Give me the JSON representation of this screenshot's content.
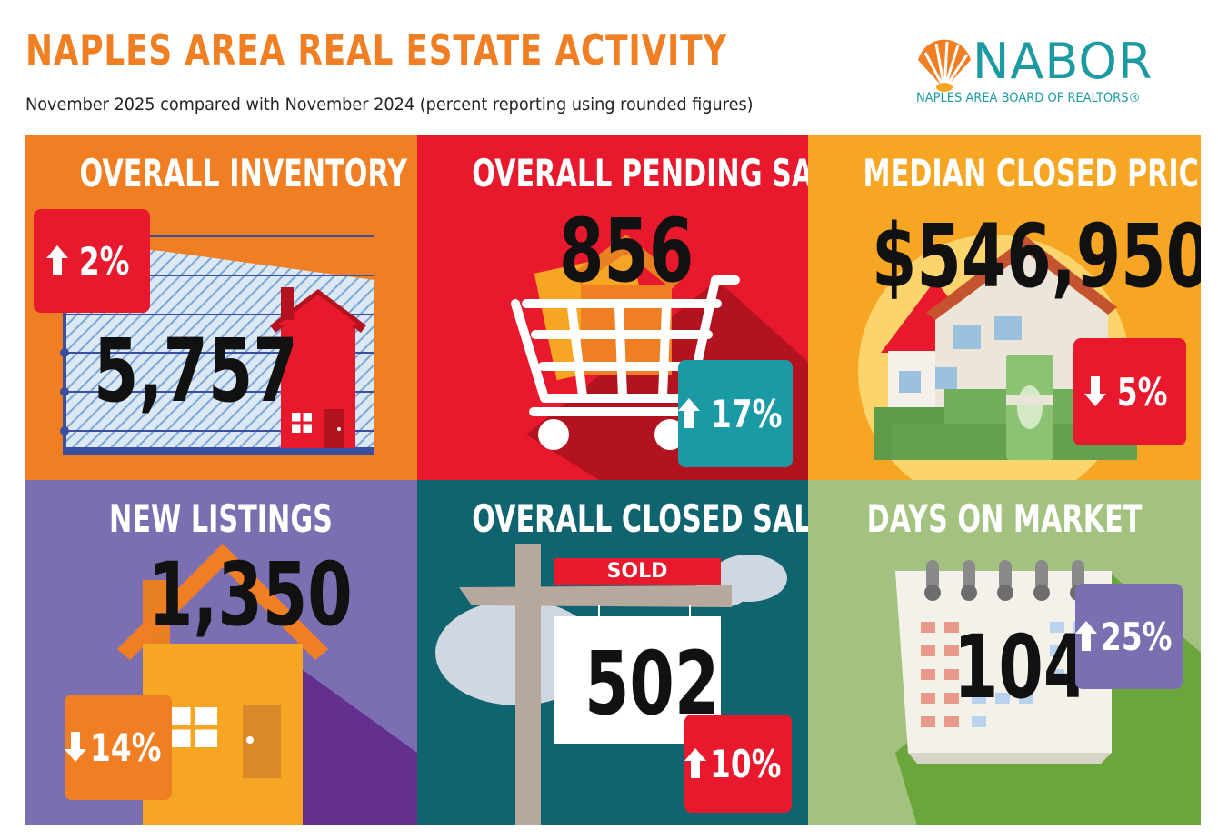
{
  "header": {
    "title": "NAPLES AREA REAL ESTATE ACTIVITY",
    "subtitle": "November 2025 compared with November 2024 (percent reporting using rounded figures)"
  },
  "logo": {
    "wordmark": "NABOR",
    "tagline": "NAPLES AREA BOARD OF REALTORS®"
  },
  "panels": {
    "inventory": {
      "title": "OVERALL INVENTORY",
      "value": "5,757",
      "change": "2%",
      "direction": "up",
      "bg": "#f07f24",
      "badge": "#e8192c"
    },
    "pending": {
      "title": "OVERALL PENDING SALES",
      "value": "856",
      "change": "17%",
      "direction": "up",
      "bg": "#e8192c",
      "badge": "#1a9aa5"
    },
    "median_price": {
      "title": "MEDIAN CLOSED PRICE",
      "value": "$546,950",
      "change": "5%",
      "direction": "down",
      "bg": "#f6a623",
      "badge": "#e8192c"
    },
    "new_listings": {
      "title": "NEW LISTINGS",
      "value": "1,350",
      "change": "14%",
      "direction": "down",
      "bg": "#7b6fb2",
      "badge": "#f07f24"
    },
    "closed_sales": {
      "title": "OVERALL CLOSED SALES",
      "value": "502",
      "change": "10%",
      "direction": "up",
      "bg": "#106470",
      "badge": "#e8192c",
      "sign": "SOLD"
    },
    "days_on_market": {
      "title": "DAYS ON MARKET",
      "value": "104",
      "change": "25%",
      "direction": "up",
      "bg": "#a3c280",
      "badge": "#7b6fb2"
    }
  }
}
